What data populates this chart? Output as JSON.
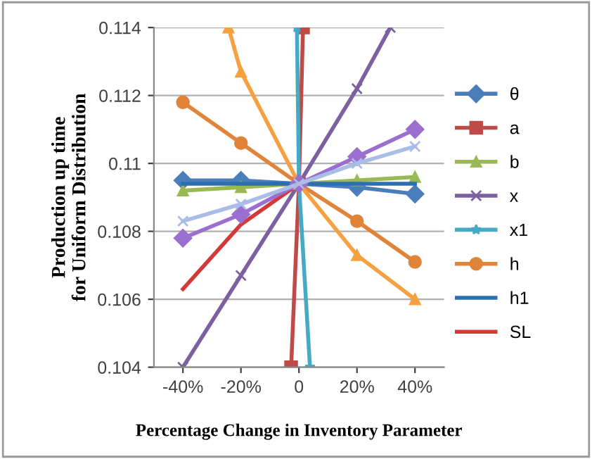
{
  "chart_data": {
    "type": "line",
    "xlabel": "Percentage Change in Inventory Parameter",
    "ylabel": "Production up time\nfor Uniform Distribution",
    "xlim": [
      -50,
      50
    ],
    "xticks": [
      {
        "value": -40,
        "label": "-40%"
      },
      {
        "value": -20,
        "label": "-20%"
      },
      {
        "value": 0,
        "label": "0"
      },
      {
        "value": 20,
        "label": "20%"
      },
      {
        "value": 40,
        "label": "40%"
      }
    ],
    "ylim": [
      0.104,
      0.114
    ],
    "yticks": [
      0.104,
      0.106,
      0.108,
      0.11,
      0.112,
      0.114
    ],
    "grid": "y",
    "legend": "right",
    "series": [
      {
        "name": "θ",
        "color": "#4a7ebb",
        "marker": "diamond",
        "x": [
          -40,
          -20,
          0,
          20,
          40
        ],
        "values": [
          0.1095,
          0.1095,
          0.1094,
          0.1093,
          0.1091
        ]
      },
      {
        "name": "a",
        "color": "#be4b48",
        "marker": "square",
        "x": [
          -2.7,
          0,
          1.4
        ],
        "values": [
          0.104,
          0.1094,
          0.114
        ]
      },
      {
        "name": "b",
        "color": "#98b954",
        "marker": "triangle",
        "x": [
          -40,
          -20,
          0,
          20,
          40
        ],
        "values": [
          0.1092,
          0.1093,
          0.1094,
          0.1095,
          0.1096
        ]
      },
      {
        "name": "x",
        "color": "#7d60a0",
        "marker": "cross",
        "x": [
          -40,
          -20,
          0,
          20,
          31.5
        ],
        "values": [
          0.104,
          0.1067,
          0.1094,
          0.1122,
          0.114
        ]
      },
      {
        "name": "x1",
        "color": "#46aac5",
        "marker": "star",
        "x": [
          -0.7,
          0,
          3.8
        ],
        "values": [
          0.114,
          0.1094,
          0.104
        ]
      },
      {
        "name": "h",
        "color": "#e0843a",
        "marker": "circle",
        "x": [
          -40,
          -20,
          0,
          20,
          40
        ],
        "values": [
          0.1118,
          0.1106,
          0.1094,
          0.1083,
          0.1071
        ]
      },
      {
        "name": "h1",
        "color": "#2c6fb0",
        "marker": "none",
        "x": [
          -40,
          -20,
          0,
          20,
          40
        ],
        "values": [
          0.1094,
          0.1094,
          0.1094,
          0.1094,
          0.1094
        ]
      },
      {
        "name": "SL",
        "color": "#d23a3a",
        "marker": "none",
        "x": [
          -40,
          -20,
          0
        ],
        "values": [
          0.1063,
          0.1082,
          0.1094
        ]
      },
      {
        "color": "#f7a040",
        "marker": "triangle",
        "x": [
          -24.3,
          -20,
          0,
          20,
          40
        ],
        "values": [
          0.114,
          0.1127,
          0.1094,
          0.1073,
          0.106
        ]
      },
      {
        "color": "#9b6fd0",
        "marker": "diamond",
        "x": [
          -40,
          -20,
          0,
          20,
          40
        ],
        "values": [
          0.1078,
          0.1085,
          0.1094,
          0.1102,
          0.111
        ]
      },
      {
        "color": "#a9bde6",
        "marker": "cross",
        "x": [
          -40,
          -20,
          0,
          20,
          40
        ],
        "values": [
          0.1083,
          0.1088,
          0.1094,
          0.11,
          0.1105
        ]
      }
    ]
  }
}
